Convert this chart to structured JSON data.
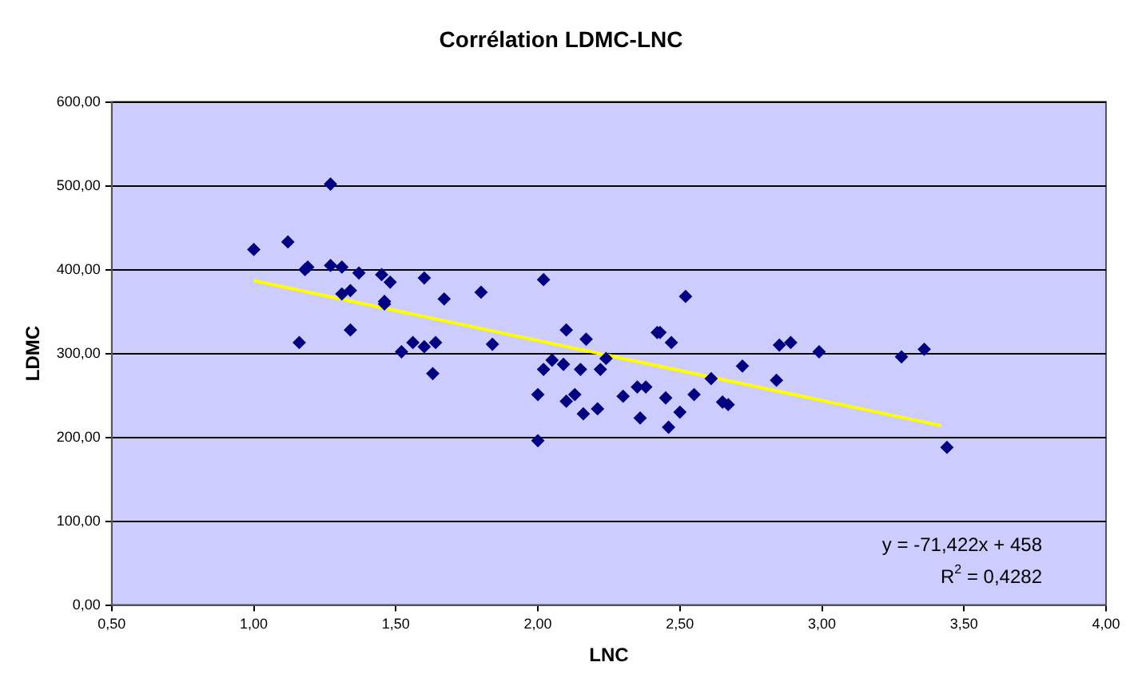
{
  "chart_data": {
    "type": "scatter",
    "title": "Corrélation LDMC-LNC",
    "xlabel": "LNC",
    "ylabel": "LDMC",
    "xlim": [
      0.5,
      4
    ],
    "xticks": [
      {
        "value": 0.5,
        "label": "0,50"
      },
      {
        "value": 1,
        "label": "1,00"
      },
      {
        "value": 1.5,
        "label": "1,50"
      },
      {
        "value": 2,
        "label": "2,00"
      },
      {
        "value": 2.5,
        "label": "2,50"
      },
      {
        "value": 3,
        "label": "3,00"
      },
      {
        "value": 3.5,
        "label": "3,50"
      },
      {
        "value": 4,
        "label": "4,00"
      }
    ],
    "ylim": [
      0,
      600
    ],
    "yticks": [
      {
        "value": 0,
        "label": "0,00"
      },
      {
        "value": 100,
        "label": "100,00"
      },
      {
        "value": 200,
        "label": "200,00"
      },
      {
        "value": 300,
        "label": "300,00"
      },
      {
        "value": 400,
        "label": "400,00"
      },
      {
        "value": 500,
        "label": "500,00"
      },
      {
        "value": 600,
        "label": "600,00"
      }
    ],
    "grid": "y",
    "legend": false,
    "marker": "diamond",
    "series": [
      {
        "type": "scatter",
        "color": "#000080",
        "x": [
          1.27,
          1.0,
          1.12,
          1.18,
          1.19,
          1.27,
          1.31,
          1.37,
          1.45,
          1.48,
          1.6,
          1.8,
          1.31,
          1.34,
          1.46,
          1.46,
          1.67,
          1.34,
          1.16,
          1.52,
          1.56,
          1.6,
          1.64,
          1.63,
          1.84,
          2.02,
          2.1,
          2.17,
          2.05,
          2.02,
          2.09,
          2.15,
          2.22,
          2.24,
          2.0,
          2.0,
          2.1,
          2.13,
          2.16,
          2.21,
          2.3,
          2.35,
          2.38,
          2.36,
          2.42,
          2.43,
          2.47,
          2.52,
          2.45,
          2.46,
          2.5,
          2.55,
          2.61,
          2.65,
          2.67,
          2.72,
          2.84,
          2.85,
          2.89,
          2.99,
          3.28,
          3.36,
          3.44
        ],
        "values": [
          502,
          424,
          433,
          400,
          403,
          405,
          403,
          396,
          394,
          385,
          390,
          373,
          371,
          375,
          362,
          359,
          365,
          328,
          313,
          302,
          313,
          308,
          313,
          276,
          311,
          388,
          328,
          317,
          292,
          281,
          287,
          281,
          281,
          294,
          251,
          196,
          243,
          251,
          228,
          234,
          249,
          260,
          260,
          223,
          325,
          325,
          313,
          368,
          247,
          212,
          230,
          251,
          270,
          242,
          239,
          285,
          268,
          310,
          313,
          302,
          296,
          305,
          188
        ]
      },
      {
        "type": "line",
        "color": "#ffff00",
        "marker": "none",
        "x": [
          1.0,
          3.42
        ],
        "values": [
          387,
          214
        ]
      }
    ],
    "annotations": [
      "y = -71,422x + 458",
      "R$^{2}$ = 0,4282"
    ]
  }
}
